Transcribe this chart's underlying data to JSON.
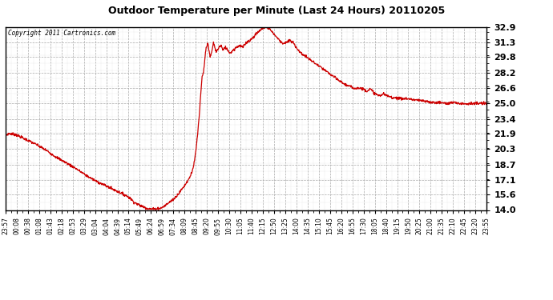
{
  "title": "Outdoor Temperature per Minute (Last 24 Hours) 20110205",
  "copyright_text": "Copyright 2011 Cartronics.com",
  "line_color": "#cc0000",
  "bg_color": "#ffffff",
  "plot_bg_color": "#ffffff",
  "grid_color": "#aaaaaa",
  "border_color": "#000000",
  "yticks": [
    14.0,
    15.6,
    17.1,
    18.7,
    20.3,
    21.9,
    23.4,
    25.0,
    26.6,
    28.2,
    29.8,
    31.3,
    32.9
  ],
  "ymin": 14.0,
  "ymax": 32.9,
  "xtick_labels": [
    "23:57",
    "00:08",
    "00:38",
    "01:08",
    "01:43",
    "02:18",
    "02:53",
    "03:29",
    "03:04",
    "04:04",
    "04:39",
    "05:14",
    "05:49",
    "06:24",
    "06:59",
    "07:34",
    "08:09",
    "08:45",
    "09:20",
    "09:55",
    "10:30",
    "11:05",
    "11:40",
    "12:15",
    "12:50",
    "13:25",
    "14:00",
    "14:35",
    "15:10",
    "15:45",
    "16:20",
    "16:55",
    "17:30",
    "18:05",
    "18:40",
    "19:15",
    "19:50",
    "20:25",
    "21:00",
    "21:35",
    "22:10",
    "22:45",
    "23:20",
    "23:55"
  ],
  "key_points": [
    [
      0,
      21.7
    ],
    [
      10,
      21.9
    ],
    [
      30,
      21.8
    ],
    [
      60,
      21.3
    ],
    [
      90,
      20.8
    ],
    [
      120,
      20.2
    ],
    [
      150,
      19.5
    ],
    [
      180,
      18.9
    ],
    [
      210,
      18.3
    ],
    [
      240,
      17.6
    ],
    [
      270,
      17.0
    ],
    [
      300,
      16.5
    ],
    [
      330,
      16.0
    ],
    [
      355,
      15.6
    ],
    [
      370,
      15.3
    ],
    [
      385,
      14.8
    ],
    [
      400,
      14.5
    ],
    [
      415,
      14.3
    ],
    [
      425,
      14.15
    ],
    [
      435,
      14.1
    ],
    [
      445,
      14.1
    ],
    [
      455,
      14.15
    ],
    [
      465,
      14.2
    ],
    [
      475,
      14.4
    ],
    [
      490,
      14.8
    ],
    [
      505,
      15.2
    ],
    [
      520,
      15.8
    ],
    [
      535,
      16.5
    ],
    [
      550,
      17.3
    ],
    [
      560,
      18.2
    ],
    [
      565,
      19.0
    ],
    [
      570,
      20.3
    ],
    [
      575,
      22.0
    ],
    [
      580,
      24.0
    ],
    [
      585,
      26.5
    ],
    [
      588,
      27.7
    ],
    [
      592,
      28.2
    ],
    [
      596,
      29.5
    ],
    [
      600,
      30.8
    ],
    [
      605,
      31.3
    ],
    [
      608,
      30.5
    ],
    [
      612,
      29.8
    ],
    [
      618,
      30.5
    ],
    [
      622,
      31.3
    ],
    [
      626,
      30.8
    ],
    [
      630,
      30.3
    ],
    [
      638,
      30.8
    ],
    [
      645,
      31.0
    ],
    [
      650,
      30.5
    ],
    [
      658,
      30.8
    ],
    [
      665,
      30.5
    ],
    [
      672,
      30.2
    ],
    [
      680,
      30.5
    ],
    [
      690,
      30.8
    ],
    [
      700,
      31.0
    ],
    [
      710,
      30.8
    ],
    [
      720,
      31.3
    ],
    [
      730,
      31.5
    ],
    [
      740,
      31.8
    ],
    [
      750,
      32.2
    ],
    [
      760,
      32.5
    ],
    [
      770,
      32.8
    ],
    [
      780,
      32.9
    ],
    [
      790,
      32.7
    ],
    [
      800,
      32.3
    ],
    [
      810,
      31.9
    ],
    [
      820,
      31.5
    ],
    [
      830,
      31.2
    ],
    [
      840,
      31.3
    ],
    [
      850,
      31.5
    ],
    [
      860,
      31.3
    ],
    [
      870,
      30.8
    ],
    [
      880,
      30.3
    ],
    [
      900,
      29.8
    ],
    [
      920,
      29.3
    ],
    [
      940,
      28.8
    ],
    [
      960,
      28.3
    ],
    [
      980,
      27.8
    ],
    [
      1000,
      27.3
    ],
    [
      1020,
      26.9
    ],
    [
      1040,
      26.6
    ],
    [
      1060,
      26.6
    ],
    [
      1070,
      26.5
    ],
    [
      1080,
      26.3
    ],
    [
      1090,
      26.5
    ],
    [
      1100,
      26.2
    ],
    [
      1110,
      25.9
    ],
    [
      1120,
      25.8
    ],
    [
      1130,
      26.0
    ],
    [
      1140,
      25.8
    ],
    [
      1150,
      25.7
    ],
    [
      1160,
      25.6
    ],
    [
      1170,
      25.6
    ],
    [
      1180,
      25.5
    ],
    [
      1200,
      25.5
    ],
    [
      1220,
      25.4
    ],
    [
      1240,
      25.3
    ],
    [
      1260,
      25.2
    ],
    [
      1280,
      25.1
    ],
    [
      1300,
      25.1
    ],
    [
      1320,
      25.0
    ],
    [
      1340,
      25.1
    ],
    [
      1360,
      25.0
    ],
    [
      1380,
      25.0
    ],
    [
      1400,
      25.0
    ],
    [
      1420,
      25.0
    ],
    [
      1439,
      25.0
    ]
  ]
}
